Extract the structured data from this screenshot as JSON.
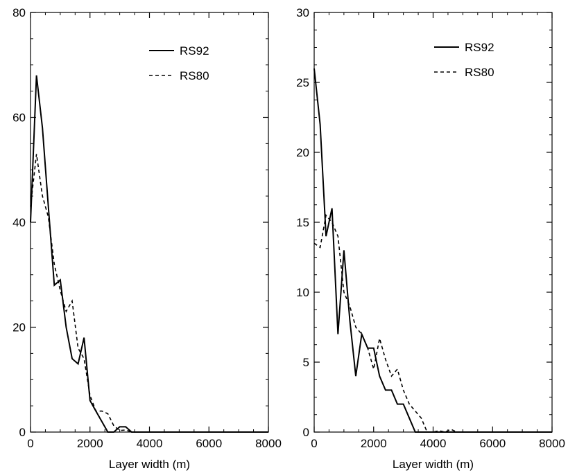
{
  "chart_data": [
    {
      "type": "line",
      "xlabel": "Layer width (m)",
      "ylabel": "",
      "xlim": [
        0,
        8000
      ],
      "ylim": [
        0,
        80
      ],
      "xticks": [
        "0",
        "2000",
        "4000",
        "6000",
        "8000"
      ],
      "yticks": [
        "0",
        "20",
        "40",
        "60",
        "80"
      ],
      "grid": false,
      "legend_position": "top-right",
      "series": [
        {
          "name": "RS92",
          "style": "solid",
          "x": [
            0,
            200,
            400,
            600,
            800,
            1000,
            1200,
            1400,
            1600,
            1800,
            2000,
            2200,
            2400,
            2600,
            2800,
            3000,
            3200,
            3400,
            3600,
            3800,
            4000,
            5000,
            6000,
            7000,
            8000
          ],
          "y": [
            40,
            68,
            58,
            43,
            28,
            29,
            20,
            14,
            13,
            18,
            6,
            4,
            2,
            0,
            0,
            1,
            1,
            0,
            0,
            0,
            0,
            0,
            0,
            0,
            0
          ]
        },
        {
          "name": "RS80",
          "style": "dashed",
          "x": [
            0,
            200,
            400,
            600,
            800,
            1000,
            1200,
            1400,
            1600,
            1800,
            2000,
            2200,
            2400,
            2600,
            2800,
            3000,
            3200,
            3400,
            3600,
            3800,
            4000,
            5000,
            6000,
            7000,
            8000
          ],
          "y": [
            43,
            53,
            45,
            41,
            32,
            27,
            23,
            25,
            16,
            14,
            7,
            4,
            4,
            3.5,
            1.2,
            0.3,
            0.4,
            0,
            0,
            0,
            0,
            0,
            0,
            0,
            0
          ]
        }
      ]
    },
    {
      "type": "line",
      "xlabel": "Layer width (m)",
      "ylabel": "",
      "xlim": [
        0,
        8000
      ],
      "ylim": [
        0,
        30
      ],
      "xticks": [
        "0",
        "2000",
        "4000",
        "6000",
        "8000"
      ],
      "yticks": [
        "0",
        "5",
        "10",
        "15",
        "20",
        "25",
        "30"
      ],
      "grid": false,
      "legend_position": "top-right",
      "series": [
        {
          "name": "RS92",
          "style": "solid",
          "x": [
            0,
            200,
            400,
            600,
            800,
            1000,
            1200,
            1400,
            1600,
            1800,
            2000,
            2200,
            2400,
            2600,
            2800,
            3000,
            3200,
            3400,
            3600,
            3800,
            4000,
            5000,
            6000,
            7000,
            8000
          ],
          "y": [
            26,
            22,
            14,
            16,
            7,
            13,
            8,
            4,
            7,
            6,
            6,
            4,
            3,
            3,
            2,
            2,
            1,
            0,
            0,
            0,
            0,
            0,
            0,
            0,
            0
          ]
        },
        {
          "name": "RS80",
          "style": "dashed",
          "x": [
            0,
            200,
            400,
            600,
            800,
            1000,
            1200,
            1400,
            1600,
            1800,
            2000,
            2200,
            2400,
            2600,
            2800,
            3000,
            3200,
            3400,
            3600,
            3800,
            4000,
            4200,
            4400,
            4600,
            4800,
            5000,
            6000,
            7000,
            8000
          ],
          "y": [
            13.5,
            13.2,
            15.5,
            15,
            14,
            10,
            9,
            7.5,
            7,
            6,
            4.5,
            6.7,
            5.2,
            4,
            4.5,
            3,
            2,
            1.5,
            1,
            0,
            0,
            0.1,
            0,
            0.2,
            0,
            0,
            0,
            0,
            0
          ]
        }
      ]
    }
  ]
}
